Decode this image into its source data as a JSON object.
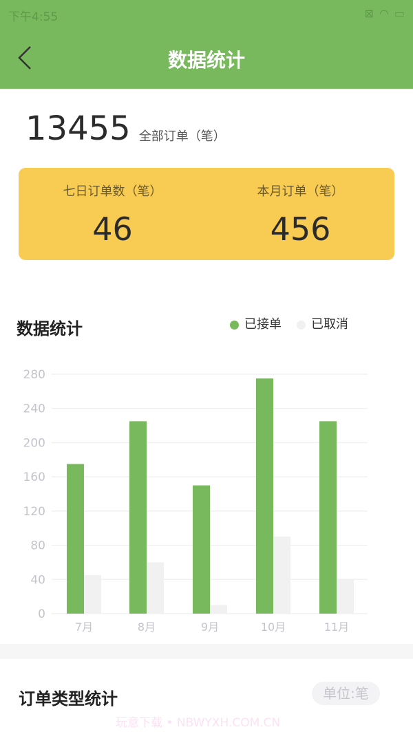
{
  "status_bar": {
    "time": "下午4:55",
    "icons": [
      "sim-x-icon",
      "wifi-icon",
      "battery-charging-icon"
    ]
  },
  "header": {
    "title": "数据统计",
    "back_icon": "chevron-left-icon"
  },
  "summary": {
    "total": "13455",
    "total_label": "全部订单（笔）"
  },
  "card": {
    "bg": "#f8cb52",
    "items": [
      {
        "label": "七日订单数（笔）",
        "value": "46"
      },
      {
        "label": "本月订单（笔）",
        "value": "456"
      }
    ]
  },
  "stats": {
    "title": "数据统计",
    "legend": [
      {
        "label": "已接单",
        "color": "#78b95d"
      },
      {
        "label": "已取消",
        "color": "#f1f1f1"
      }
    ]
  },
  "chart_data": {
    "type": "bar",
    "categories": [
      "7月",
      "8月",
      "9月",
      "10月",
      "11月"
    ],
    "series": [
      {
        "name": "已接单",
        "values": [
          175,
          225,
          150,
          275,
          225
        ],
        "color": "#78b95d"
      },
      {
        "name": "已取消",
        "values": [
          45,
          60,
          10,
          90,
          40
        ],
        "color": "#f1f1f1"
      }
    ],
    "yticks": [
      "0",
      "40",
      "80",
      "120",
      "160",
      "200",
      "240",
      "280"
    ],
    "ylim": [
      0,
      280
    ],
    "grid": true,
    "legend": "top-right"
  },
  "type_stats": {
    "title": "订单类型统计",
    "unit": "单位:笔"
  },
  "watermark": "玩意下载 • NBWYXH.COM.CN"
}
